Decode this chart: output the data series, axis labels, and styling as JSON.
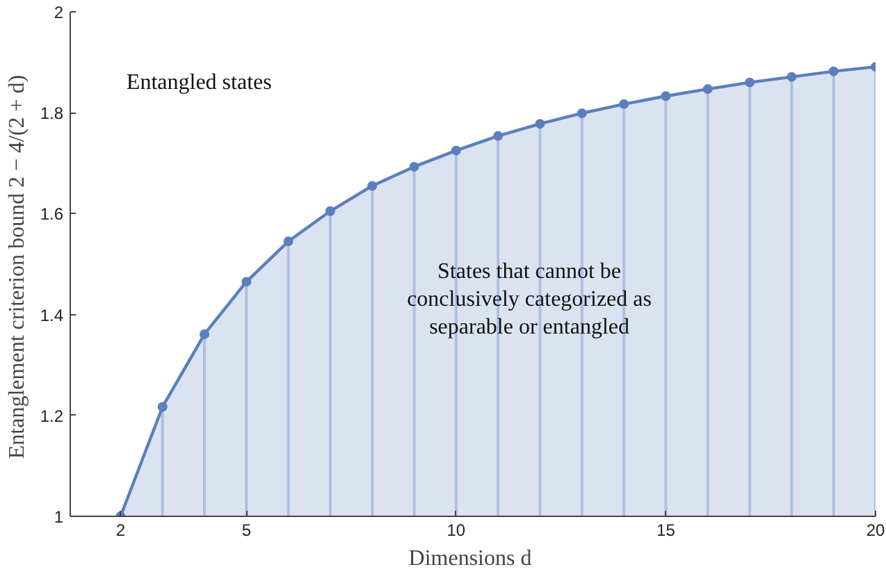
{
  "chart_data": {
    "type": "area",
    "xlabel": "Dimensions  d",
    "ylabel": "Entanglement criterion bound  2 − 4/(2 + d)",
    "x": [
      2,
      3,
      4,
      5,
      6,
      7,
      8,
      9,
      10,
      11,
      12,
      13,
      14,
      15,
      16,
      17,
      18,
      19,
      20
    ],
    "series": [
      {
        "type": "lollipop",
        "marker": "circle",
        "color": "#5b7fbd",
        "values": [
          1.0,
          1.217,
          1.361,
          1.465,
          1.545,
          1.605,
          1.655,
          1.693,
          1.725,
          1.754,
          1.778,
          1.799,
          1.817,
          1.833,
          1.847,
          1.86,
          1.871,
          1.882,
          1.891
        ]
      },
      {
        "color": "#5b7fbd",
        "values": [
          1.0,
          1.217,
          1.361,
          1.465,
          1.545,
          1.605,
          1.655,
          1.693,
          1.725,
          1.754,
          1.778,
          1.799,
          1.817,
          1.833,
          1.847,
          1.86,
          1.871,
          1.882,
          1.891
        ]
      }
    ],
    "xlim": [
      0.8,
      20
    ],
    "ylim": [
      1,
      2
    ],
    "xticks": [
      2,
      5,
      10,
      15,
      20
    ],
    "yticks": [
      1,
      1.2,
      1.4,
      1.6,
      1.8,
      2
    ],
    "annotations": [
      "Entangled states",
      "States that cannot be\nconclusively categorized as\nseparable or entangled"
    ]
  }
}
